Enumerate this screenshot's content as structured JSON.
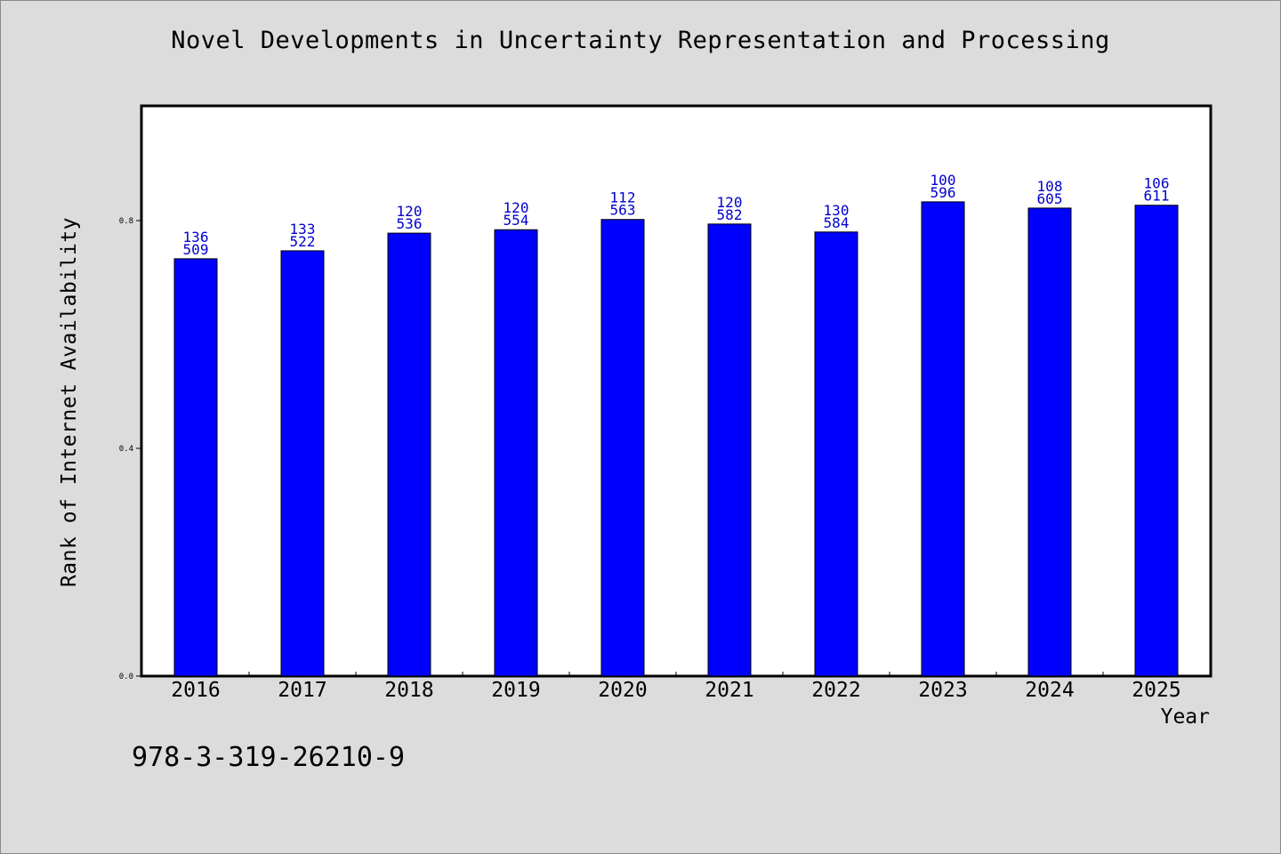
{
  "chart_data": {
    "type": "bar",
    "title": "Novel Developments in Uncertainty Representation and Processing",
    "xlabel": "Year",
    "ylabel": "Rank of Internet Availability",
    "categories": [
      "2016",
      "2017",
      "2018",
      "2019",
      "2020",
      "2021",
      "2022",
      "2023",
      "2024",
      "2025"
    ],
    "values": [
      0.733,
      0.747,
      0.778,
      0.784,
      0.802,
      0.794,
      0.78,
      0.833,
      0.822,
      0.827
    ],
    "annotations_top": [
      "136",
      "133",
      "120",
      "120",
      "112",
      "120",
      "130",
      "100",
      "108",
      "106"
    ],
    "annotations_bottom": [
      "509",
      "522",
      "536",
      "554",
      "563",
      "582",
      "584",
      "596",
      "605",
      "611"
    ],
    "yticks": [
      "0.0",
      "0.4",
      "0.8"
    ],
    "ytick_values": [
      0.0,
      0.4,
      0.8
    ],
    "ylim": [
      0,
      1.0
    ],
    "grid": false,
    "legend": "none",
    "bar_color": "#0000ff",
    "annotation_color": "#0000cc"
  },
  "footer": {
    "code": "978-3-319-26210-9"
  }
}
